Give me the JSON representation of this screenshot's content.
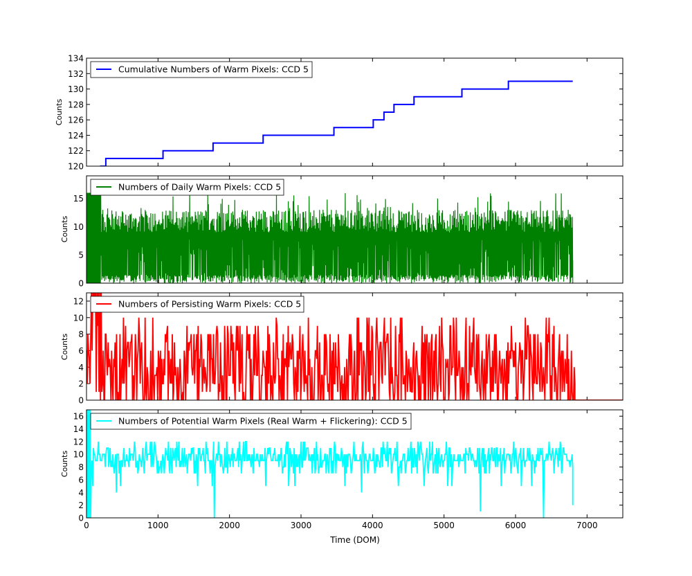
{
  "chart_data": [
    {
      "type": "line",
      "id": "cumulative",
      "legend": "Cumulative Numbers of Warm Pixels: CCD 5",
      "ylabel": "Counts",
      "color": "#0000ff",
      "xlim": [
        0,
        7500
      ],
      "ylim": [
        120,
        134
      ],
      "yticks": [
        "120",
        "122",
        "124",
        "126",
        "128",
        "130",
        "132",
        "134"
      ],
      "series": [
        {
          "name": "Cumulative Numbers of Warm Pixels: CCD 5",
          "steps": [
            [
              190,
              120
            ],
            [
              270,
              121
            ],
            [
              1070,
              122
            ],
            [
              1770,
              123
            ],
            [
              2470,
              124
            ],
            [
              3460,
              125
            ],
            [
              4010,
              126
            ],
            [
              4160,
              127
            ],
            [
              4300,
              128
            ],
            [
              4580,
              129
            ],
            [
              5250,
              130
            ],
            [
              5900,
              131
            ],
            [
              6800,
              131
            ]
          ]
        }
      ]
    },
    {
      "type": "line",
      "id": "daily",
      "legend": "Numbers of Daily Warm Pixels: CCD 5",
      "ylabel": "Counts",
      "color": "#008000",
      "xlim": [
        0,
        7500
      ],
      "ylim": [
        0,
        19
      ],
      "yticks": [
        "0",
        "5",
        "10",
        "15"
      ],
      "series": [
        {
          "name": "Numbers of Daily Warm Pixels: CCD 5",
          "x_range": [
            0,
            6800
          ],
          "typical_range": [
            0,
            13
          ],
          "spikes_to": 16
        }
      ]
    },
    {
      "type": "line",
      "id": "persisting",
      "legend": "Numbers of Persisting Warm Pixels: CCD 5",
      "ylabel": "Counts",
      "color": "#ff0000",
      "xlim": [
        0,
        7500
      ],
      "ylim": [
        0,
        13
      ],
      "yticks": [
        "0",
        "2",
        "4",
        "6",
        "8",
        "10",
        "12"
      ],
      "series": [
        {
          "name": "Numbers of Persisting Warm Pixels: CCD 5",
          "x_range": [
            0,
            6830
          ],
          "typical_range": [
            0,
            10
          ],
          "flat_after": 6830
        }
      ]
    },
    {
      "type": "line",
      "id": "potential",
      "legend": "Numbers of Potential Warm Pixels (Real Warm + Flickering): CCD 5",
      "ylabel": "Counts",
      "xlabel": "Time (DOM)",
      "color": "#00ffff",
      "xlim": [
        0,
        7500
      ],
      "ylim": [
        0,
        17
      ],
      "yticks": [
        "0",
        "2",
        "4",
        "6",
        "8",
        "10",
        "12",
        "14",
        "16"
      ],
      "xticks": [
        "0",
        "1000",
        "2000",
        "3000",
        "4000",
        "5000",
        "6000",
        "7000"
      ],
      "series": [
        {
          "name": "Numbers of Potential Warm Pixels (Real Warm + Flickering): CCD 5",
          "x_range": [
            0,
            6800
          ],
          "typical_range": [
            7,
            11
          ],
          "dips": [
            [
              1790,
              0
            ],
            [
              6390,
              0
            ],
            [
              5510,
              1
            ],
            [
              3850,
              4
            ],
            [
              420,
              4
            ]
          ]
        }
      ]
    }
  ]
}
